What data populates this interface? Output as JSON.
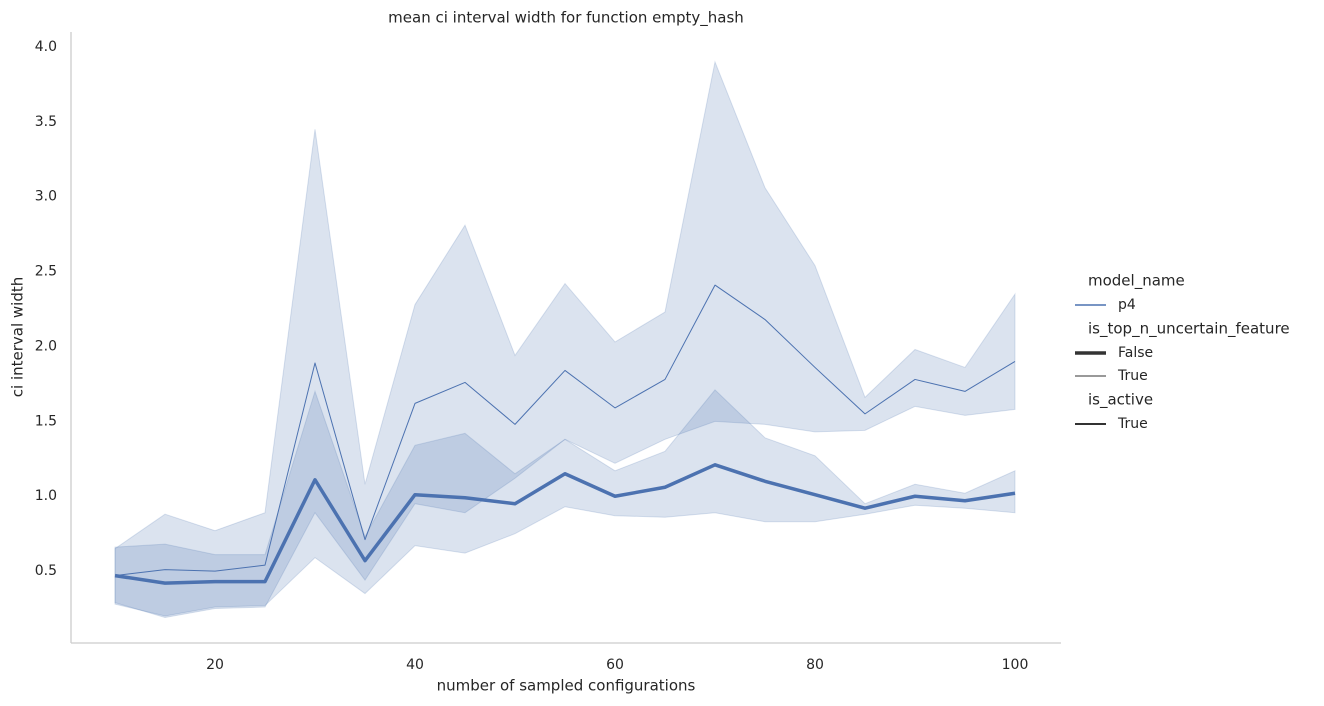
{
  "chart_data": {
    "type": "line",
    "title": "mean ci interval width for function empty_hash",
    "x_label": "number of sampled configurations",
    "y_label": "ci interval width",
    "x": [
      10,
      15,
      20,
      25,
      30,
      35,
      40,
      45,
      50,
      55,
      60,
      65,
      70,
      75,
      80,
      85,
      90,
      95,
      100
    ],
    "xlim": [
      5.6,
      104.6
    ],
    "xticks": [
      20,
      40,
      60,
      80,
      100
    ],
    "ylim": [
      0.02,
      4.1
    ],
    "yticks": [
      0.5,
      {
        "value": 1,
        "label": "1.0"
      },
      1.5,
      {
        "value": 2,
        "label": "2.0"
      },
      2.5,
      {
        "value": 3,
        "label": "3.0"
      },
      3.5,
      {
        "value": 4,
        "label": "4.0"
      }
    ],
    "grid": false,
    "series": [
      {
        "name": "False",
        "color": "#4c72b0",
        "linewidth": 3.5,
        "values": [
          0.47,
          0.42,
          0.43,
          0.43,
          1.11,
          0.57,
          1.01,
          0.99,
          0.95,
          1.15,
          1.0,
          1.06,
          1.21,
          1.1,
          1.01,
          0.92,
          1.0,
          0.97,
          1.02
        ],
        "lower": [
          0.28,
          0.2,
          0.26,
          0.27,
          0.59,
          0.35,
          0.67,
          0.62,
          0.75,
          0.93,
          0.87,
          0.86,
          0.89,
          0.83,
          0.83,
          0.88,
          0.94,
          0.92,
          0.89
        ],
        "upper": [
          0.66,
          0.68,
          0.61,
          0.61,
          1.7,
          0.73,
          1.34,
          1.42,
          1.15,
          1.38,
          1.17,
          1.3,
          1.71,
          1.39,
          1.27,
          0.95,
          1.08,
          1.02,
          1.17
        ]
      },
      {
        "name": "True",
        "color": "#4c72b0",
        "linewidth": 1,
        "values": [
          0.47,
          0.51,
          0.5,
          0.54,
          1.89,
          0.71,
          1.62,
          1.76,
          1.48,
          1.84,
          1.59,
          1.78,
          2.41,
          2.18,
          1.86,
          1.55,
          1.78,
          1.7,
          1.9
        ],
        "lower": [
          0.29,
          0.19,
          0.25,
          0.26,
          0.89,
          0.44,
          0.95,
          0.89,
          1.12,
          1.38,
          1.22,
          1.38,
          1.5,
          1.48,
          1.43,
          1.44,
          1.6,
          1.54,
          1.58
        ],
        "upper": [
          0.65,
          0.88,
          0.77,
          0.89,
          3.45,
          1.08,
          2.28,
          2.81,
          1.94,
          2.42,
          2.03,
          2.23,
          3.9,
          3.06,
          2.54,
          1.66,
          1.98,
          1.86,
          2.35
        ]
      }
    ],
    "legend": [
      {
        "title": "model_name",
        "entries": [
          "p4"
        ]
      },
      {
        "title": "is_top_n_uncertain_feature"
      },
      {
        "title": "is_active",
        "entries": [
          "True"
        ]
      }
    ]
  }
}
